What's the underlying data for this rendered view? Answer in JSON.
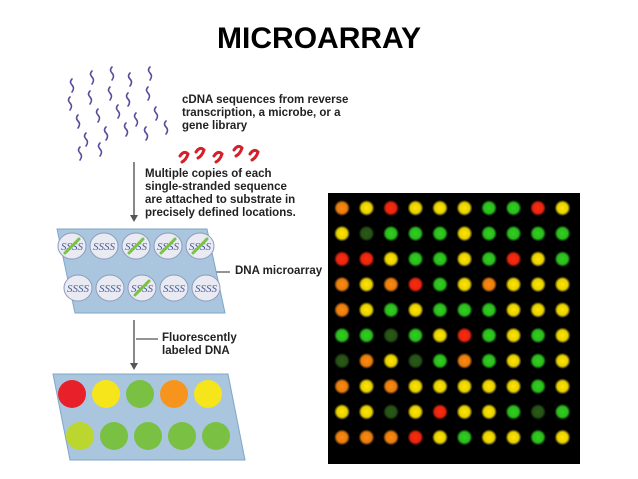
{
  "title": "MICROARRAY",
  "labels": {
    "cdna": "cDNA sequences from reverse\ntranscription, a microbe, or a\ngene library",
    "copies": "Multiple copies of each\nsingle-stranded sequence\nare attached to substrate in\nprecisely defined locations.",
    "array": "DNA microarray",
    "fluor": "Fluorescently\nlabeled DNA"
  },
  "probe_glyph": "SSSS",
  "colors": {
    "strand": "#5a4a9a",
    "labeled_strand": "#d4202a",
    "slide": "#a9c6de",
    "well": "#e9eaf2",
    "green_fragment": "#7cc242",
    "spot_red": "#e8202a",
    "spot_yellow": "#f6e51b",
    "spot_green": "#79c043",
    "spot_orange": "#f7941d",
    "spot_yellowgreen": "#bcd630"
  },
  "bound_wells": [
    0,
    2,
    3,
    4,
    7
  ],
  "result_spots": [
    [
      "red",
      "yellow",
      "green",
      "orange",
      "yellow"
    ],
    [
      "yellowgreen",
      "green",
      "green",
      "green",
      "green"
    ]
  ],
  "photo_grid": [
    [
      "orange",
      "yellow",
      "red",
      "yellow",
      "yellow",
      "yellow",
      "green",
      "green",
      "red",
      "yellow"
    ],
    [
      "yellow",
      "dim",
      "green",
      "green",
      "green",
      "yellow",
      "green",
      "green",
      "green",
      "green"
    ],
    [
      "red",
      "red",
      "yellow",
      "green",
      "green",
      "yellow",
      "green",
      "red",
      "yellow",
      "green"
    ],
    [
      "orange",
      "yellow",
      "orange",
      "red",
      "green",
      "yellow",
      "orange",
      "yellow",
      "yellow",
      "yellow"
    ],
    [
      "orange",
      "yellow",
      "green",
      "yellow",
      "green",
      "green",
      "green",
      "yellow",
      "yellow",
      "yellow"
    ],
    [
      "green",
      "green",
      "dim",
      "green",
      "yellow",
      "red",
      "green",
      "yellow",
      "green",
      "yellow"
    ],
    [
      "dim",
      "orange",
      "yellow",
      "dim",
      "green",
      "orange",
      "green",
      "yellow",
      "green",
      "yellow"
    ],
    [
      "orange",
      "yellow",
      "orange",
      "yellow",
      "yellow",
      "yellow",
      "yellow",
      "yellow",
      "green",
      "yellow"
    ],
    [
      "yellow",
      "yellow",
      "dim",
      "yellow",
      "red",
      "yellow",
      "yellow",
      "green",
      "dim",
      "green"
    ],
    [
      "orange",
      "orange",
      "orange",
      "red",
      "yellow",
      "green",
      "yellow",
      "yellow",
      "green",
      "yellow"
    ]
  ]
}
